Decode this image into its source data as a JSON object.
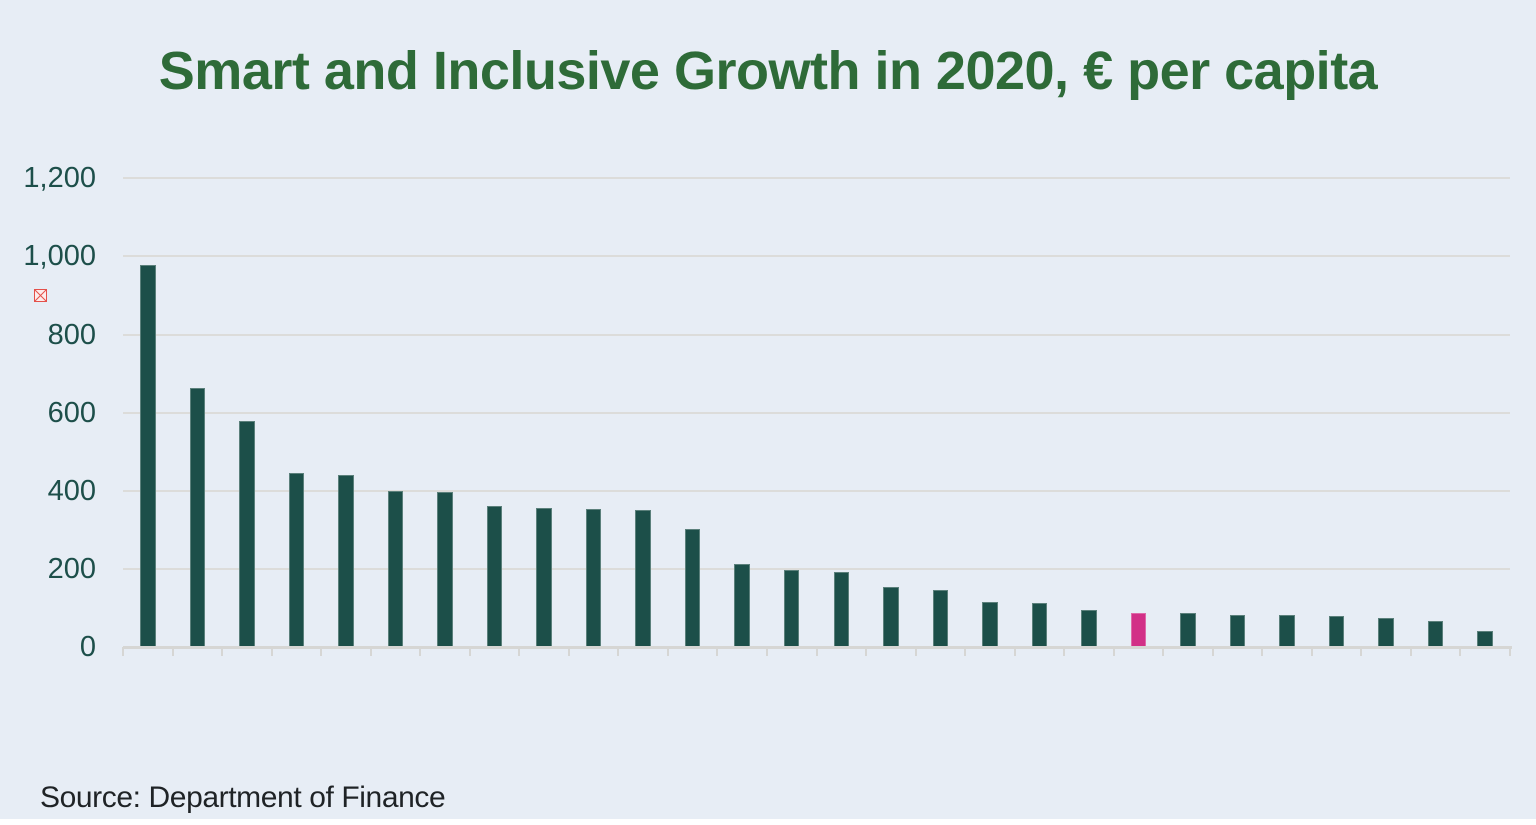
{
  "page": {
    "background_color": "#e7edf5",
    "bottom_strip_color": "#ffffff",
    "title": "Smart and Inclusive Growth in 2020, € per capita",
    "title_color": "#2e6b38",
    "source_note": "Source: Department of Finance",
    "icons": {
      "broken_image": "red crossed-box missing-image placeholder near y-axis"
    }
  },
  "chart_data": {
    "type": "bar",
    "title": "Smart and Inclusive Growth in 2020, € per capita",
    "xlabel": "",
    "ylabel": "",
    "ylim": [
      0,
      1200
    ],
    "grid": true,
    "legend": false,
    "y_tick_labels": [
      "1,200",
      "1,000",
      "800",
      "600",
      "400",
      "200",
      "0"
    ],
    "y_tick_values": [
      1200,
      1000,
      800,
      600,
      400,
      200,
      0
    ],
    "x_tick_labels": [],
    "values": [
      978,
      663,
      578,
      445,
      441,
      400,
      396,
      362,
      356,
      354,
      352,
      302,
      213,
      198,
      193,
      153,
      146,
      114,
      113,
      95,
      88,
      86,
      82,
      81,
      80,
      73,
      66,
      40
    ],
    "highlight_index": 20,
    "colors": {
      "bar": "#1c4f49",
      "highlight": "#d23087",
      "gridline": "#dcdcda",
      "axis_line": "#d6d6d4",
      "tick_label": "#1d4f4a"
    }
  }
}
